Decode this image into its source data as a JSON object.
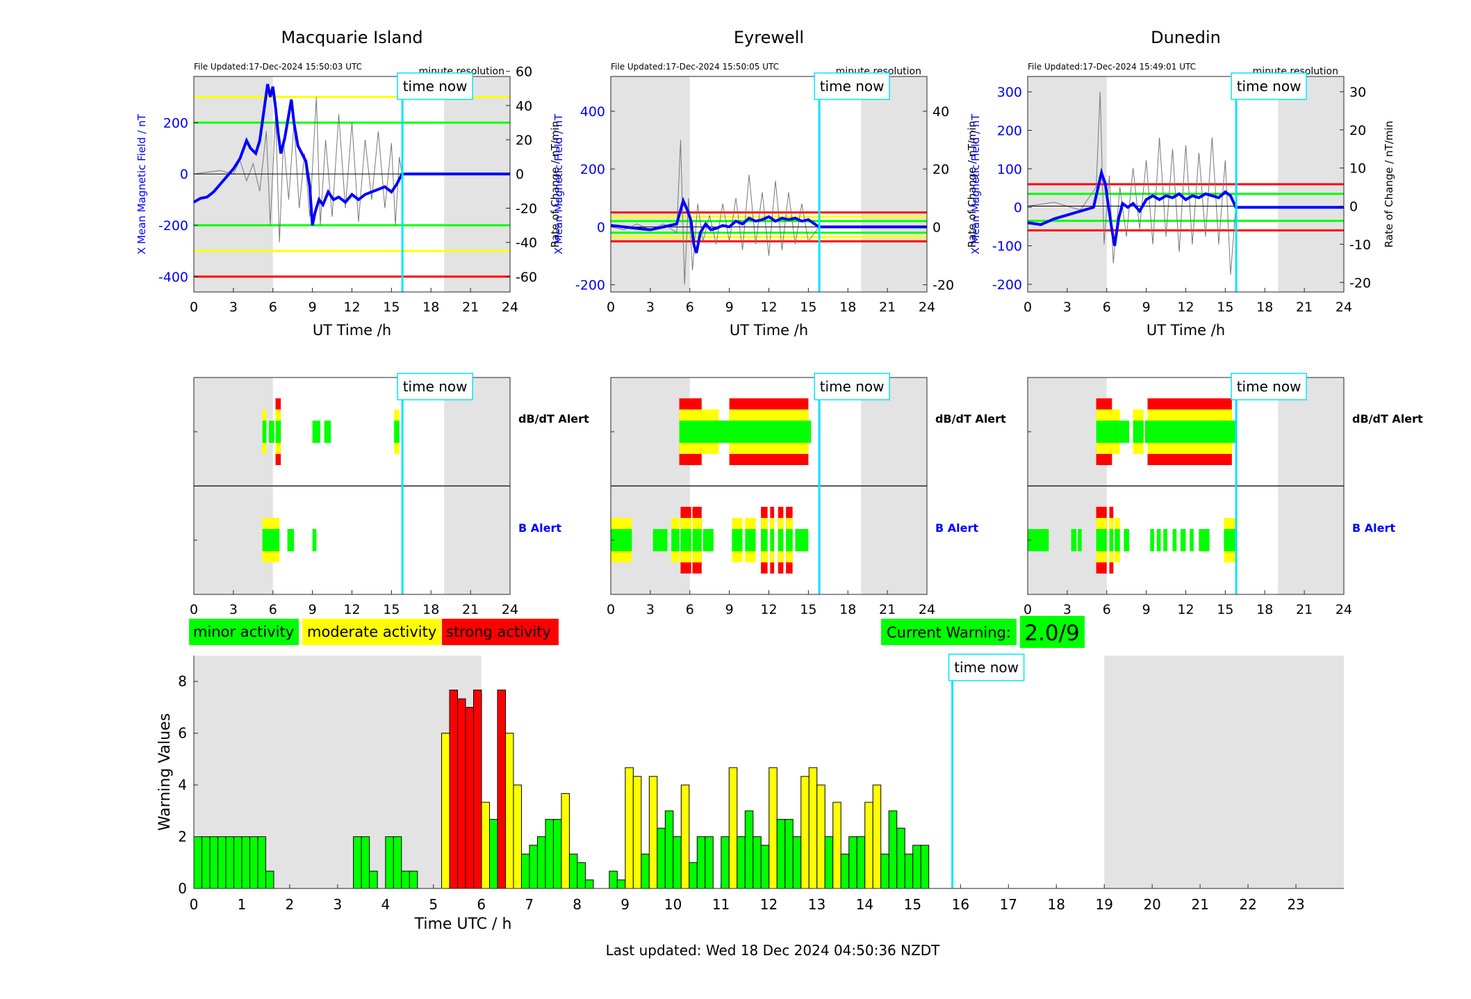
{
  "stations": [
    {
      "name": "Macquarie Island",
      "file_updated": "File Updated:17-Dec-2024 15:50:03 UTC",
      "resolution": "minute resolution",
      "left_axis_label": "X Mean Magnetic Field / nT",
      "right_axis_label": "Rate of Change / nT/min",
      "left_ylim": [
        -460,
        380
      ],
      "left_ticks": [
        -400,
        -200,
        0,
        200
      ],
      "right_ylim": [
        -69,
        57
      ],
      "right_ticks": [
        -60,
        -40,
        -20,
        0,
        20,
        40,
        60
      ],
      "thresholds": [
        {
          "value": 300,
          "color": "#ffff00"
        },
        {
          "value": 200,
          "color": "#00ff00"
        },
        {
          "value": -200,
          "color": "#00ff00"
        },
        {
          "value": -300,
          "color": "#ffff00"
        },
        {
          "value": -400,
          "color": "#ff0000"
        }
      ],
      "trace": [
        [
          0,
          -110
        ],
        [
          0.5,
          -95
        ],
        [
          1,
          -90
        ],
        [
          1.5,
          -70
        ],
        [
          2,
          -40
        ],
        [
          2.5,
          -10
        ],
        [
          3,
          20
        ],
        [
          3.5,
          60
        ],
        [
          4,
          130
        ],
        [
          4.3,
          100
        ],
        [
          4.7,
          80
        ],
        [
          5,
          130
        ],
        [
          5.3,
          240
        ],
        [
          5.6,
          350
        ],
        [
          5.8,
          300
        ],
        [
          6.0,
          340
        ],
        [
          6.2,
          260
        ],
        [
          6.4,
          160
        ],
        [
          6.6,
          80
        ],
        [
          6.9,
          140
        ],
        [
          7.2,
          230
        ],
        [
          7.4,
          290
        ],
        [
          7.6,
          200
        ],
        [
          7.9,
          110
        ],
        [
          8.2,
          80
        ],
        [
          8.5,
          50
        ],
        [
          8.8,
          -50
        ],
        [
          9.0,
          -200
        ],
        [
          9.2,
          -150
        ],
        [
          9.5,
          -100
        ],
        [
          9.8,
          -120
        ],
        [
          10.2,
          -70
        ],
        [
          10.6,
          -100
        ],
        [
          11,
          -90
        ],
        [
          11.5,
          -110
        ],
        [
          12,
          -80
        ],
        [
          12.5,
          -100
        ],
        [
          13,
          -80
        ],
        [
          13.5,
          -70
        ],
        [
          14,
          -60
        ],
        [
          14.5,
          -50
        ],
        [
          15,
          -70
        ],
        [
          15.4,
          -40
        ],
        [
          15.8,
          0
        ],
        [
          24,
          0
        ]
      ],
      "rate": [
        [
          0,
          0
        ],
        [
          2,
          2
        ],
        [
          3,
          0
        ],
        [
          3.5,
          8
        ],
        [
          4,
          -4
        ],
        [
          4.5,
          6
        ],
        [
          5,
          -10
        ],
        [
          5.5,
          25
        ],
        [
          5.8,
          -30
        ],
        [
          6.2,
          35
        ],
        [
          6.5,
          -40
        ],
        [
          6.8,
          20
        ],
        [
          7.2,
          -15
        ],
        [
          7.6,
          30
        ],
        [
          8,
          -20
        ],
        [
          8.4,
          12
        ],
        [
          8.8,
          -25
        ],
        [
          9.3,
          45
        ],
        [
          9.6,
          -30
        ],
        [
          10,
          20
        ],
        [
          10.5,
          -25
        ],
        [
          11,
          35
        ],
        [
          11.5,
          -20
        ],
        [
          12,
          30
        ],
        [
          12.5,
          -28
        ],
        [
          13,
          20
        ],
        [
          13.5,
          -15
        ],
        [
          14,
          25
        ],
        [
          14.5,
          -20
        ],
        [
          15,
          18
        ],
        [
          15.3,
          -30
        ],
        [
          15.6,
          10
        ],
        [
          15.8,
          0
        ]
      ]
    },
    {
      "name": "Eyrewell",
      "file_updated": "File Updated:17-Dec-2024 15:50:05 UTC",
      "resolution": "minute resolution",
      "left_axis_label": "X Mean Magnetic Field / nT",
      "right_axis_label": "Rate of Change / nT/min",
      "left_ylim": [
        -225,
        520
      ],
      "left_ticks": [
        -200,
        0,
        200,
        400
      ],
      "right_ylim": [
        -22.5,
        52
      ],
      "right_ticks": [
        -20,
        0,
        20,
        40
      ],
      "thresholds": [
        {
          "value": 50,
          "color": "#ff0000"
        },
        {
          "value": 35,
          "color": "#ffff00"
        },
        {
          "value": 20,
          "color": "#00ff00"
        },
        {
          "value": -20,
          "color": "#00ff00"
        },
        {
          "value": -35,
          "color": "#ffff00"
        },
        {
          "value": -50,
          "color": "#ff0000"
        }
      ],
      "trace": [
        [
          0,
          5
        ],
        [
          1,
          0
        ],
        [
          2,
          -5
        ],
        [
          3,
          -10
        ],
        [
          4,
          0
        ],
        [
          5,
          10
        ],
        [
          5.5,
          90
        ],
        [
          5.8,
          60
        ],
        [
          6.1,
          20
        ],
        [
          6.3,
          -60
        ],
        [
          6.5,
          -90
        ],
        [
          6.8,
          -20
        ],
        [
          7.2,
          10
        ],
        [
          7.6,
          -10
        ],
        [
          8,
          -5
        ],
        [
          8.5,
          5
        ],
        [
          9,
          0
        ],
        [
          9.5,
          20
        ],
        [
          10,
          10
        ],
        [
          10.5,
          30
        ],
        [
          11,
          20
        ],
        [
          11.5,
          25
        ],
        [
          12,
          35
        ],
        [
          12.5,
          20
        ],
        [
          13,
          30
        ],
        [
          13.5,
          25
        ],
        [
          14,
          30
        ],
        [
          14.5,
          20
        ],
        [
          15,
          25
        ],
        [
          15.8,
          0
        ],
        [
          24,
          0
        ]
      ],
      "rate": [
        [
          0,
          0
        ],
        [
          1,
          -1
        ],
        [
          2,
          1
        ],
        [
          3,
          -1
        ],
        [
          4,
          1
        ],
        [
          5,
          -2
        ],
        [
          5.3,
          30
        ],
        [
          5.6,
          -20
        ],
        [
          5.9,
          10
        ],
        [
          6.2,
          -15
        ],
        [
          6.6,
          8
        ],
        [
          7,
          -5
        ],
        [
          7.5,
          4
        ],
        [
          8,
          -6
        ],
        [
          8.5,
          8
        ],
        [
          9,
          -5
        ],
        [
          9.5,
          10
        ],
        [
          10,
          -8
        ],
        [
          10.5,
          18
        ],
        [
          11,
          -6
        ],
        [
          11.5,
          12
        ],
        [
          12,
          -10
        ],
        [
          12.5,
          16
        ],
        [
          13,
          -8
        ],
        [
          13.5,
          12
        ],
        [
          14,
          -6
        ],
        [
          14.5,
          8
        ],
        [
          15,
          -5
        ],
        [
          15.8,
          0
        ]
      ]
    },
    {
      "name": "Dunedin",
      "file_updated": "File Updated:17-Dec-2024 15:49:01 UTC",
      "resolution": "minute resolution",
      "left_axis_label": "X Mean Magnetic Field / nT",
      "right_axis_label": "Rate of Change / nT/min",
      "left_ylim": [
        -220,
        340
      ],
      "left_ticks": [
        -200,
        -100,
        0,
        100,
        200,
        300
      ],
      "right_ylim": [
        -22.5,
        34
      ],
      "right_ticks": [
        -20,
        -10,
        0,
        10,
        20,
        30
      ],
      "thresholds": [
        {
          "value": 60,
          "color": "#ff0000"
        },
        {
          "value": 35,
          "color": "#00ff00"
        },
        {
          "value": -35,
          "color": "#00ff00"
        },
        {
          "value": -60,
          "color": "#ff0000"
        }
      ],
      "trace": [
        [
          0,
          -40
        ],
        [
          1,
          -45
        ],
        [
          2,
          -30
        ],
        [
          3,
          -20
        ],
        [
          4,
          -10
        ],
        [
          5,
          0
        ],
        [
          5.4,
          60
        ],
        [
          5.6,
          90
        ],
        [
          5.9,
          60
        ],
        [
          6.1,
          10
        ],
        [
          6.4,
          -60
        ],
        [
          6.6,
          -100
        ],
        [
          6.9,
          -30
        ],
        [
          7.2,
          10
        ],
        [
          7.6,
          0
        ],
        [
          8,
          10
        ],
        [
          8.5,
          -10
        ],
        [
          9,
          20
        ],
        [
          9.5,
          30
        ],
        [
          10,
          20
        ],
        [
          10.5,
          30
        ],
        [
          11,
          25
        ],
        [
          11.5,
          35
        ],
        [
          12,
          20
        ],
        [
          12.5,
          30
        ],
        [
          13,
          25
        ],
        [
          13.5,
          35
        ],
        [
          14,
          30
        ],
        [
          14.5,
          25
        ],
        [
          15,
          40
        ],
        [
          15.4,
          30
        ],
        [
          15.8,
          0
        ],
        [
          24,
          0
        ]
      ],
      "rate": [
        [
          0,
          0
        ],
        [
          2,
          1
        ],
        [
          4,
          -1
        ],
        [
          5.2,
          5
        ],
        [
          5.5,
          30
        ],
        [
          5.8,
          -10
        ],
        [
          6.2,
          8
        ],
        [
          6.5,
          -15
        ],
        [
          7,
          5
        ],
        [
          7.5,
          -8
        ],
        [
          8,
          10
        ],
        [
          8.5,
          -6
        ],
        [
          9,
          12
        ],
        [
          9.5,
          -10
        ],
        [
          10,
          18
        ],
        [
          10.5,
          -8
        ],
        [
          11,
          15
        ],
        [
          11.5,
          -12
        ],
        [
          12,
          16
        ],
        [
          12.5,
          -10
        ],
        [
          13,
          14
        ],
        [
          13.5,
          -8
        ],
        [
          14,
          18
        ],
        [
          14.5,
          -10
        ],
        [
          15,
          12
        ],
        [
          15.4,
          -18
        ],
        [
          15.8,
          0
        ]
      ]
    }
  ],
  "axes": {
    "x_label": "UT Time /h",
    "x_ticks": [
      0,
      3,
      6,
      9,
      12,
      15,
      18,
      21,
      24
    ],
    "time_now_label": "time now",
    "time_now_hour": 15.83,
    "night_shade": [
      [
        0,
        6
      ],
      [
        19,
        24
      ]
    ]
  },
  "alerts": {
    "dbdt_label": "dB/dT Alert",
    "b_label": "B Alert",
    "colors": {
      "minor": "#00ff00",
      "moderate": "#ffff00",
      "strong": "#ff0000"
    },
    "stations": [
      {
        "dbdt": [
          [
            5.2,
            5.5,
            2
          ],
          [
            5.7,
            6.1,
            1
          ],
          [
            6.2,
            6.6,
            3
          ],
          [
            9.0,
            9.6,
            1
          ],
          [
            9.9,
            10.4,
            1
          ],
          [
            15.2,
            15.6,
            2
          ]
        ],
        "b": [
          [
            5.2,
            6.5,
            2
          ],
          [
            7.1,
            7.6,
            1
          ],
          [
            9.0,
            9.3,
            1
          ]
        ]
      },
      {
        "dbdt": [
          [
            5.2,
            6.9,
            3
          ],
          [
            6.9,
            7.2,
            2
          ],
          [
            7.2,
            8.2,
            2
          ],
          [
            8.2,
            9.0,
            1
          ],
          [
            9.0,
            15.0,
            3
          ],
          [
            15.0,
            15.2,
            1
          ]
        ],
        "b": [
          [
            0,
            1.6,
            2
          ],
          [
            3.2,
            4.3,
            1
          ],
          [
            4.6,
            5.2,
            2
          ],
          [
            5.3,
            6.1,
            3
          ],
          [
            6.2,
            6.9,
            3
          ],
          [
            7.0,
            7.8,
            1
          ],
          [
            9.2,
            10.0,
            2
          ],
          [
            10.2,
            11.0,
            2
          ],
          [
            11.4,
            11.9,
            3
          ],
          [
            12.1,
            12.4,
            3
          ],
          [
            12.7,
            13.1,
            3
          ],
          [
            13.3,
            13.8,
            3
          ],
          [
            14.0,
            15.0,
            1
          ]
        ]
      },
      {
        "dbdt": [
          [
            5.2,
            6.4,
            3
          ],
          [
            6.4,
            7.0,
            2
          ],
          [
            7.0,
            7.7,
            1
          ],
          [
            8.0,
            8.8,
            2
          ],
          [
            8.9,
            9.6,
            1
          ],
          [
            9.1,
            15.5,
            3
          ],
          [
            15.5,
            15.9,
            1
          ]
        ],
        "b": [
          [
            0,
            1.6,
            1
          ],
          [
            3.3,
            3.7,
            1
          ],
          [
            3.8,
            4.1,
            1
          ],
          [
            5.2,
            6.0,
            3
          ],
          [
            6.2,
            6.5,
            3
          ],
          [
            6.6,
            7.0,
            2
          ],
          [
            7.3,
            7.7,
            1
          ],
          [
            9.3,
            9.6,
            1
          ],
          [
            9.8,
            10.1,
            1
          ],
          [
            10.3,
            10.6,
            1
          ],
          [
            11.0,
            11.3,
            1
          ],
          [
            11.6,
            12.0,
            1
          ],
          [
            12.3,
            12.6,
            1
          ],
          [
            13.0,
            13.8,
            1
          ],
          [
            14.9,
            15.9,
            2
          ]
        ]
      }
    ]
  },
  "legend": {
    "minor": "minor activity",
    "moderate": "moderate activity",
    "strong": "strong activity"
  },
  "current_warning": {
    "label": "Current Warning:",
    "value": "2.0/9"
  },
  "chart_data": {
    "type": "bar",
    "xlabel": "Time UTC / h",
    "ylabel": "Warning Values",
    "ylim": [
      0,
      9
    ],
    "xlim": [
      0,
      24
    ],
    "y_ticks": [
      0,
      2,
      4,
      6,
      8
    ],
    "x_ticks": [
      0,
      1,
      2,
      3,
      4,
      5,
      6,
      7,
      8,
      9,
      10,
      11,
      12,
      13,
      14,
      15,
      16,
      17,
      18,
      19,
      20,
      21,
      22,
      23
    ],
    "bin_width_h": 0.1667,
    "night_shade": [
      [
        0,
        6
      ],
      [
        19,
        24
      ]
    ],
    "time_now_hour": 15.83,
    "time_now_label": "time now",
    "series": [
      {
        "start_h": 0.0,
        "values": [
          2,
          2,
          2,
          2,
          2,
          2,
          2,
          2,
          2,
          0.67
        ]
      },
      {
        "start_h": 3.33,
        "values": [
          2,
          2,
          0.67
        ]
      },
      {
        "start_h": 4.0,
        "values": [
          2,
          2,
          0.67,
          0.67
        ]
      },
      {
        "start_h": 5.17,
        "values": [
          6,
          7.67,
          7.33,
          7,
          7.67,
          3.33,
          2.67,
          7.67,
          6,
          4,
          1.33,
          1.67,
          2,
          2.67,
          2.67,
          3.67,
          1.33,
          1,
          0.33
        ]
      },
      {
        "start_h": 8.67,
        "values": [
          0.67,
          0.33,
          4.67,
          4.33,
          1.33,
          4.33,
          2.33,
          3,
          2,
          4,
          1,
          2,
          2,
          0,
          2,
          4.67,
          2,
          3,
          2,
          1.67,
          4.67,
          2.67,
          2.67,
          2,
          4.33,
          4.67,
          4,
          2,
          3.33,
          1.33,
          2,
          2,
          3.33,
          4,
          1.33,
          3,
          2.33,
          1.33,
          1.67,
          1.67
        ]
      }
    ]
  },
  "footer": "Last updated: Wed 18 Dec 2024 04:50:36 NZDT"
}
